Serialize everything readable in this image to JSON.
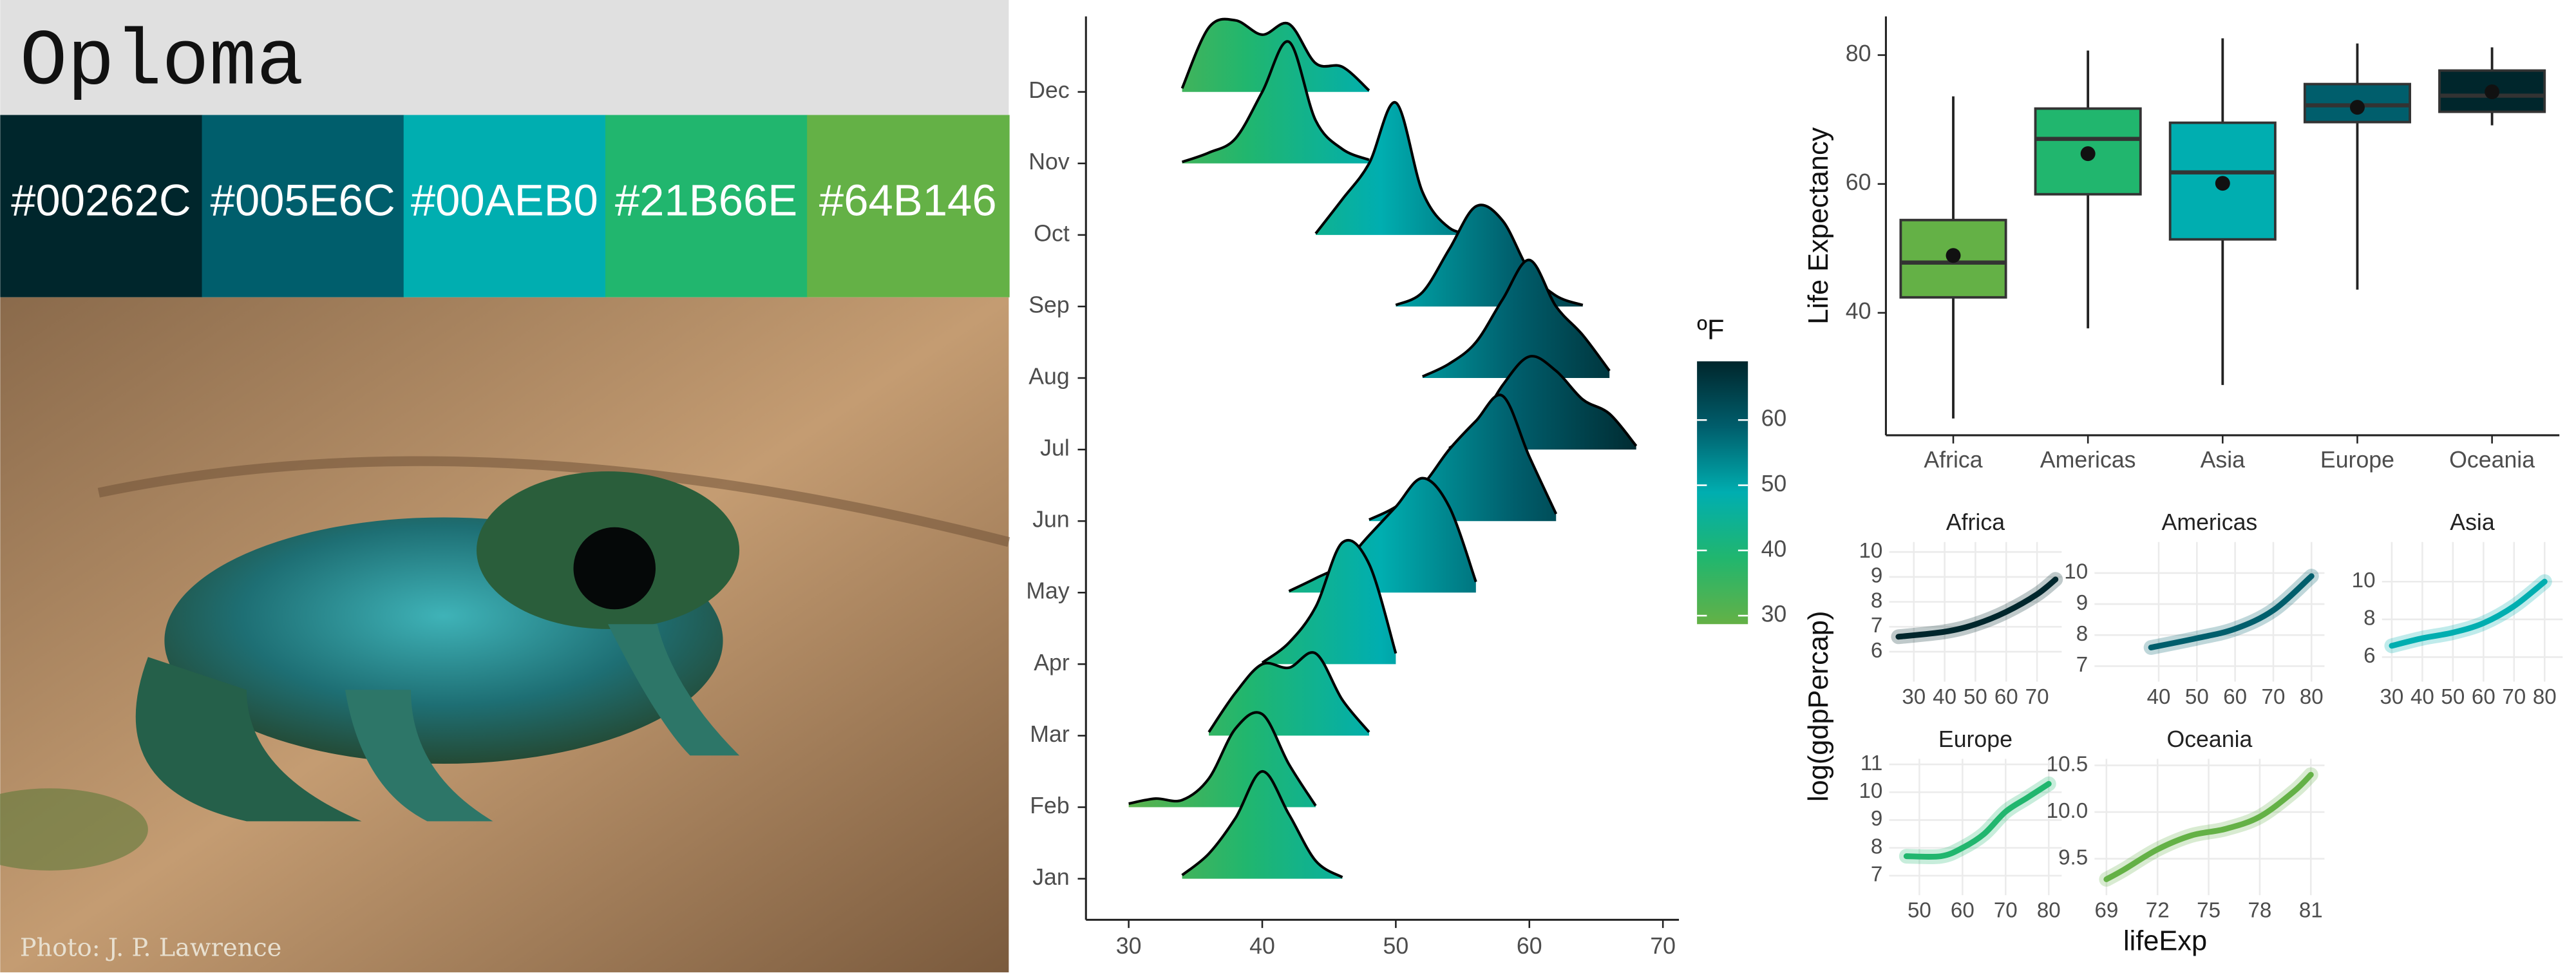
{
  "palette": {
    "title": "Oploma",
    "colors": [
      "#00262C",
      "#005E6C",
      "#00AEB0",
      "#21B66E",
      "#64B146"
    ]
  },
  "photo": {
    "credit": "Photo: J. P. Lawrence"
  },
  "facet_labels": {
    "x": "lifeExp",
    "y": "log(gdpPercap)"
  },
  "chart_data": [
    {
      "type": "ridgeline",
      "x": [
        28,
        30,
        32,
        34,
        36,
        38,
        40,
        42,
        44,
        46,
        48,
        50,
        52,
        54,
        56,
        58,
        60,
        62,
        64,
        66,
        68,
        70
      ],
      "series": [
        {
          "name": "Jan",
          "values": [
            null,
            null,
            null,
            0.05,
            0.35,
            0.85,
            1.5,
            0.9,
            0.25,
            0.02,
            null,
            null,
            null,
            null,
            null,
            null,
            null,
            null,
            null,
            null,
            null,
            null
          ]
        },
        {
          "name": "Feb",
          "values": [
            null,
            0.05,
            0.12,
            0.1,
            0.4,
            1.1,
            1.3,
            0.6,
            0.02,
            null,
            null,
            null,
            null,
            null,
            null,
            null,
            null,
            null,
            null,
            null,
            null,
            null
          ]
        },
        {
          "name": "Mar",
          "values": [
            null,
            null,
            null,
            null,
            0.05,
            0.6,
            1.0,
            0.95,
            1.15,
            0.5,
            0.05,
            null,
            null,
            null,
            null,
            null,
            null,
            null,
            null,
            null,
            null,
            null
          ]
        },
        {
          "name": "Apr",
          "values": [
            null,
            null,
            null,
            null,
            null,
            null,
            0.02,
            0.3,
            0.8,
            1.7,
            1.4,
            0.15,
            null,
            null,
            null,
            null,
            null,
            null,
            null,
            null,
            null,
            null
          ]
        },
        {
          "name": "May",
          "values": [
            null,
            null,
            null,
            null,
            null,
            null,
            null,
            0.02,
            0.2,
            0.4,
            0.8,
            1.2,
            1.6,
            1.2,
            0.15,
            null,
            null,
            null,
            null,
            null,
            null,
            null
          ]
        },
        {
          "name": "Jun",
          "values": [
            null,
            null,
            null,
            null,
            null,
            null,
            null,
            null,
            null,
            null,
            0.02,
            0.2,
            0.5,
            1.0,
            1.4,
            1.75,
            0.9,
            0.1,
            null,
            null,
            null,
            null
          ]
        },
        {
          "name": "Jul",
          "values": [
            null,
            null,
            null,
            null,
            null,
            null,
            null,
            null,
            null,
            null,
            null,
            null,
            null,
            0.02,
            0.3,
            0.9,
            1.3,
            1.1,
            0.7,
            0.5,
            0.05,
            null
          ]
        },
        {
          "name": "Aug",
          "values": [
            null,
            null,
            null,
            null,
            null,
            null,
            null,
            null,
            null,
            null,
            null,
            null,
            0.02,
            0.2,
            0.5,
            1.1,
            1.65,
            1.0,
            0.6,
            0.1,
            null,
            null
          ]
        },
        {
          "name": "Sep",
          "values": [
            null,
            null,
            null,
            null,
            null,
            null,
            null,
            null,
            null,
            null,
            null,
            0.02,
            0.2,
            0.8,
            1.4,
            1.2,
            0.5,
            0.15,
            0.02,
            null,
            null,
            null
          ]
        },
        {
          "name": "Oct",
          "values": [
            null,
            null,
            null,
            null,
            null,
            null,
            null,
            null,
            0.02,
            0.5,
            1.0,
            1.85,
            0.6,
            0.1,
            0.02,
            null,
            null,
            null,
            null,
            null,
            null,
            null
          ]
        },
        {
          "name": "Nov",
          "values": [
            null,
            null,
            null,
            0.02,
            0.15,
            0.35,
            1.0,
            1.7,
            0.6,
            0.2,
            0.05,
            null,
            null,
            null,
            null,
            null,
            null,
            null,
            null,
            null,
            null,
            null
          ]
        },
        {
          "name": "Dec",
          "values": [
            null,
            null,
            null,
            0.05,
            0.9,
            1.0,
            0.8,
            0.95,
            0.4,
            0.35,
            0.02,
            null,
            null,
            null,
            null,
            null,
            null,
            null,
            null,
            null,
            null,
            null
          ]
        }
      ],
      "xlim": [
        26.8,
        71.2
      ],
      "xticks": [
        30,
        40,
        50,
        60,
        70
      ],
      "colorbar": {
        "title": "ºF",
        "colors": [
          "#64B146",
          "#21B66E",
          "#00AEB0",
          "#005E6C",
          "#00262C"
        ],
        "lim": [
          28.7,
          69
        ],
        "ticks": [
          30,
          40,
          50,
          60
        ]
      }
    },
    {
      "type": "box",
      "ylabel": "Life Expectancy",
      "categories": [
        "Africa",
        "Americas",
        "Asia",
        "Europe",
        "Oceania"
      ],
      "colors": [
        "#64B146",
        "#21B66E",
        "#00AEB0",
        "#005E6C",
        "#00262C"
      ],
      "whisker_low": [
        23.6,
        37.6,
        28.8,
        43.6,
        69.1
      ],
      "q1": [
        42.4,
        58.4,
        51.4,
        69.6,
        71.2
      ],
      "median": [
        47.8,
        67.0,
        61.8,
        72.2,
        73.7
      ],
      "q3": [
        54.4,
        71.7,
        69.5,
        75.5,
        77.6
      ],
      "whisker_high": [
        73.6,
        80.7,
        82.6,
        81.8,
        81.2
      ],
      "mean": [
        48.9,
        64.7,
        60.1,
        71.9,
        74.3
      ],
      "ylim": [
        21,
        86
      ],
      "yticks": [
        40,
        60,
        80
      ]
    },
    {
      "type": "line",
      "title": "Africa",
      "color": "#00262C",
      "x": [
        25,
        40,
        50,
        60,
        70,
        76
      ],
      "values": [
        6.6,
        6.8,
        7.1,
        7.6,
        8.3,
        8.9
      ],
      "xlim": [
        22,
        78
      ],
      "ylim": [
        4.8,
        10.4
      ],
      "xticks": [
        30,
        40,
        50,
        60,
        70
      ],
      "yticks": [
        6,
        7,
        8,
        9,
        10
      ]
    },
    {
      "type": "line",
      "title": "Americas",
      "color": "#005E6C",
      "x": [
        38,
        50,
        60,
        70,
        80
      ],
      "values": [
        7.6,
        7.9,
        8.2,
        8.8,
        9.9
      ],
      "xlim": [
        23.2,
        83.4
      ],
      "ylim": [
        6.5,
        11
      ],
      "xticks": [
        40,
        50,
        60,
        70,
        80
      ],
      "yticks": [
        7,
        8,
        9,
        10
      ]
    },
    {
      "type": "line",
      "title": "Asia",
      "color": "#00AEB0",
      "x": [
        30,
        40,
        50,
        60,
        70,
        80
      ],
      "values": [
        6.6,
        7.0,
        7.3,
        7.8,
        8.7,
        10.0
      ],
      "xlim": [
        26.8,
        85.9
      ],
      "ylim": [
        4.7,
        12.1
      ],
      "xticks": [
        30,
        40,
        50,
        60,
        70,
        80
      ],
      "yticks": [
        6,
        8,
        10
      ]
    },
    {
      "type": "line",
      "title": "Europe",
      "color": "#21B66E",
      "x": [
        47,
        55,
        60,
        65,
        70,
        75,
        80
      ],
      "values": [
        7.7,
        7.7,
        8.0,
        8.5,
        9.3,
        9.8,
        10.3
      ],
      "xlim": [
        43,
        83
      ],
      "ylim": [
        6.3,
        11.2
      ],
      "xticks": [
        50,
        60,
        70,
        80
      ],
      "yticks": [
        7,
        8,
        9,
        10,
        11
      ]
    },
    {
      "type": "line",
      "title": "Oceania",
      "color": "#64B146",
      "x": [
        69,
        70,
        72,
        74,
        76,
        78,
        80,
        81
      ],
      "values": [
        9.28,
        9.38,
        9.6,
        9.75,
        9.82,
        9.95,
        10.22,
        10.4
      ],
      "xlim": [
        68.3,
        81.8
      ],
      "ylim": [
        9.11,
        10.57
      ],
      "xticks": [
        69,
        72,
        75,
        78,
        81
      ],
      "yticks": [
        9.5,
        {
          "value": 10,
          "label": "10.0"
        },
        10.5
      ]
    }
  ]
}
